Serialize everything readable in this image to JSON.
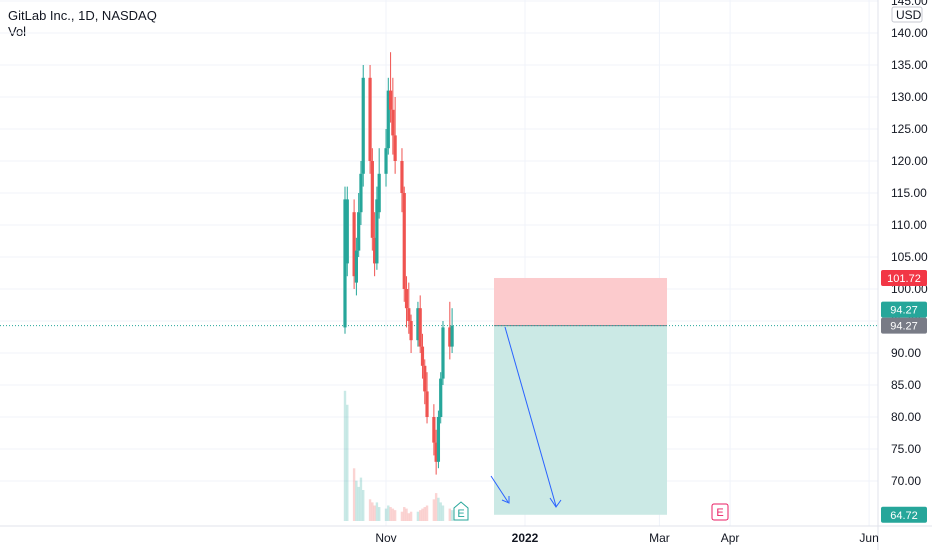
{
  "header": {
    "symbol": "GitLab Inc., 1D, NASDAQ",
    "volume_label": "Vol"
  },
  "axis": {
    "currency": "USD"
  },
  "events": {
    "earnings_label": "E"
  },
  "price_tags": {
    "stop": {
      "label": "101.72",
      "color": "#f23645"
    },
    "last": {
      "label": "94.27",
      "color": "#26a69a"
    },
    "entry": {
      "label": "94.27",
      "color": "#787b86"
    },
    "target": {
      "label": "64.72",
      "color": "#26a69a"
    }
  },
  "chart_data": {
    "type": "candlestick",
    "title": "GitLab Inc., 1D, NASDAQ",
    "ylim": [
      64.5,
      145
    ],
    "y_ticks": [
      70,
      75,
      80,
      85,
      90,
      95,
      100,
      105,
      110,
      115,
      120,
      125,
      130,
      135,
      140,
      145
    ],
    "x_ticks": [
      "Nov",
      "2022",
      "Mar",
      "Apr",
      "Jun"
    ],
    "colors": {
      "up": "#26a69a",
      "down": "#ef5350"
    },
    "candles": [
      {
        "date": "2021-10-14",
        "o": 94,
        "h": 116,
        "l": 93,
        "c": 114,
        "v": 84
      },
      {
        "date": "2021-10-15",
        "o": 104,
        "h": 116,
        "l": 102,
        "c": 114,
        "v": 75
      },
      {
        "date": "2021-10-18",
        "o": 112,
        "h": 114,
        "l": 100,
        "c": 102,
        "v": 34
      },
      {
        "date": "2021-10-19",
        "o": 101,
        "h": 108,
        "l": 99,
        "c": 106,
        "v": 26
      },
      {
        "date": "2021-10-20",
        "o": 106,
        "h": 115,
        "l": 105,
        "c": 112,
        "v": 22
      },
      {
        "date": "2021-10-21",
        "o": 112,
        "h": 120,
        "l": 110,
        "c": 118,
        "v": 28
      },
      {
        "date": "2021-10-22",
        "o": 118,
        "h": 135,
        "l": 116,
        "c": 133,
        "v": 20
      },
      {
        "date": "2021-10-25",
        "o": 133,
        "h": 135,
        "l": 118,
        "c": 120,
        "v": 14
      },
      {
        "date": "2021-10-26",
        "o": 120,
        "h": 122,
        "l": 106,
        "c": 108,
        "v": 12
      },
      {
        "date": "2021-10-27",
        "o": 108,
        "h": 112,
        "l": 102,
        "c": 104,
        "v": 10
      },
      {
        "date": "2021-10-28",
        "o": 104,
        "h": 116,
        "l": 103,
        "c": 114,
        "v": 12
      },
      {
        "date": "2021-10-29",
        "o": 112,
        "h": 122,
        "l": 111,
        "c": 118,
        "v": 9
      },
      {
        "date": "2021-11-01",
        "o": 118,
        "h": 125,
        "l": 116,
        "c": 122,
        "v": 8
      },
      {
        "date": "2021-11-02",
        "o": 122,
        "h": 133,
        "l": 121,
        "c": 131,
        "v": 10
      },
      {
        "date": "2021-11-03",
        "o": 131,
        "h": 137,
        "l": 126,
        "c": 128,
        "v": 9
      },
      {
        "date": "2021-11-04",
        "o": 128,
        "h": 133,
        "l": 121,
        "c": 124,
        "v": 8
      },
      {
        "date": "2021-11-05",
        "o": 124,
        "h": 130,
        "l": 118,
        "c": 120,
        "v": 7
      },
      {
        "date": "2021-11-08",
        "o": 120,
        "h": 122,
        "l": 112,
        "c": 115,
        "v": 6
      },
      {
        "date": "2021-11-09",
        "o": 115,
        "h": 116,
        "l": 98,
        "c": 100,
        "v": 9
      },
      {
        "date": "2021-11-10",
        "o": 100,
        "h": 102,
        "l": 94,
        "c": 97,
        "v": 8
      },
      {
        "date": "2021-11-11",
        "o": 97,
        "h": 101,
        "l": 93,
        "c": 95,
        "v": 5
      },
      {
        "date": "2021-11-12",
        "o": 95,
        "h": 96,
        "l": 90,
        "c": 92,
        "v": 6
      },
      {
        "date": "2021-11-15",
        "o": 92,
        "h": 98,
        "l": 91,
        "c": 97,
        "v": 6
      },
      {
        "date": "2021-11-16",
        "o": 97,
        "h": 99,
        "l": 90,
        "c": 91,
        "v": 7
      },
      {
        "date": "2021-11-17",
        "o": 91,
        "h": 93,
        "l": 86,
        "c": 88,
        "v": 8
      },
      {
        "date": "2021-11-18",
        "o": 88,
        "h": 89,
        "l": 82,
        "c": 84,
        "v": 9
      },
      {
        "date": "2021-11-19",
        "o": 84,
        "h": 87,
        "l": 79,
        "c": 80,
        "v": 10
      },
      {
        "date": "2021-11-22",
        "o": 80,
        "h": 82,
        "l": 74,
        "c": 76,
        "v": 14
      },
      {
        "date": "2021-11-23",
        "o": 76,
        "h": 78,
        "l": 71,
        "c": 73,
        "v": 18
      },
      {
        "date": "2021-11-24",
        "o": 73,
        "h": 81,
        "l": 72,
        "c": 80,
        "v": 15
      },
      {
        "date": "2021-11-25",
        "o": 80,
        "h": 87,
        "l": 79,
        "c": 86,
        "v": 12
      },
      {
        "date": "2021-11-26",
        "o": 86,
        "h": 95,
        "l": 85,
        "c": 94,
        "v": 10
      },
      {
        "date": "2021-11-29",
        "o": 94,
        "h": 98,
        "l": 89,
        "c": 91,
        "v": 8
      },
      {
        "date": "2021-11-30",
        "o": 91,
        "h": 97,
        "l": 90,
        "c": 94.27,
        "v": 7
      }
    ],
    "position": {
      "type": "short",
      "entry": 94.27,
      "stop": 101.72,
      "target": 64.72,
      "colors": {
        "risk": "#fccbcd",
        "reward": "#cbe9e5"
      }
    }
  }
}
